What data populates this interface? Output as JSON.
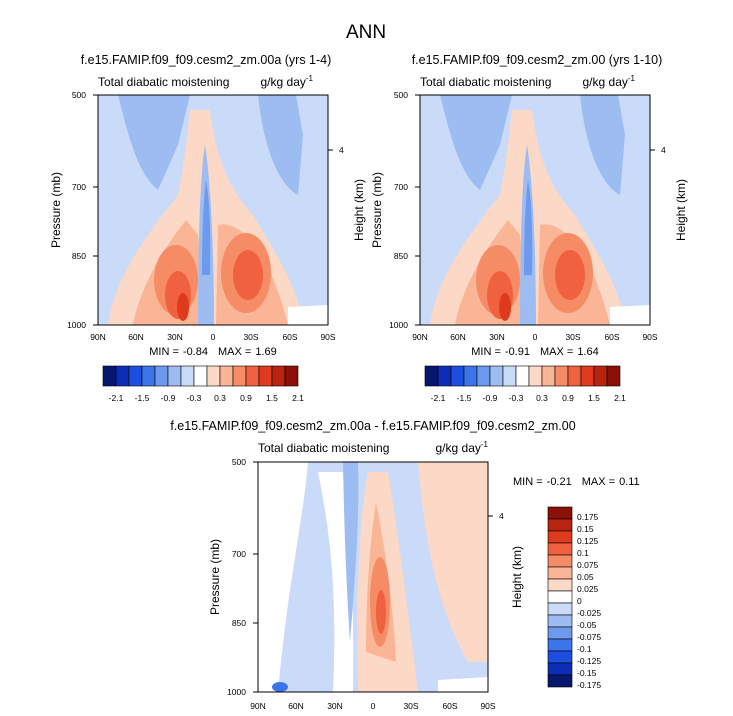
{
  "figure": {
    "title": "ANN"
  },
  "chart_data": [
    {
      "type": "heatmap",
      "title": "f.e15.FAMIP.f09_f09.cesm2_zm.00a (yrs 1-4)",
      "left_label": "Total diabatic moistening",
      "units": "g/kg day",
      "units_exp": "-1",
      "xlabel": "",
      "ylabel": "Pressure (mb)",
      "ylabel_right": "Height (km)",
      "x_ticks": [
        "90N",
        "60N",
        "30N",
        "0",
        "30S",
        "60S",
        "90S"
      ],
      "y_ticks": [
        "500",
        "700",
        "850",
        "1000"
      ],
      "y_right_ticks": [
        "4"
      ],
      "stats": {
        "min_label": "MIN =",
        "min": "-0.84",
        "max_label": "MAX =",
        "max": "1.69"
      },
      "colorbar": {
        "orientation": "horizontal",
        "labels": [
          "-2.1",
          "-1.5",
          "-0.9",
          "-0.3",
          "0.3",
          "0.9",
          "1.5",
          "2.1"
        ]
      }
    },
    {
      "type": "heatmap",
      "title": "f.e15.FAMIP.f09_f09.cesm2_zm.00 (yrs 1-10)",
      "left_label": "Total diabatic moistening",
      "units": "g/kg day",
      "units_exp": "-1",
      "xlabel": "",
      "ylabel": "Pressure (mb)",
      "ylabel_right": "Height (km)",
      "x_ticks": [
        "90N",
        "60N",
        "30N",
        "0",
        "30S",
        "60S",
        "90S"
      ],
      "y_ticks": [
        "500",
        "700",
        "850",
        "1000"
      ],
      "y_right_ticks": [
        "4"
      ],
      "stats": {
        "min_label": "MIN =",
        "min": "-0.91",
        "max_label": "MAX =",
        "max": "1.64"
      },
      "colorbar": {
        "orientation": "horizontal",
        "labels": [
          "-2.1",
          "-1.5",
          "-0.9",
          "-0.3",
          "0.3",
          "0.9",
          "1.5",
          "2.1"
        ]
      }
    },
    {
      "type": "heatmap",
      "title": "f.e15.FAMIP.f09_f09.cesm2_zm.00a - f.e15.FAMIP.f09_f09.cesm2_zm.00",
      "left_label": "Total diabatic moistening",
      "units": "g/kg day",
      "units_exp": "-1",
      "xlabel": "",
      "ylabel": "Pressure (mb)",
      "ylabel_right": "Height (km)",
      "x_ticks": [
        "90N",
        "60N",
        "30N",
        "0",
        "30S",
        "60S",
        "90S"
      ],
      "y_ticks": [
        "500",
        "700",
        "850",
        "1000"
      ],
      "y_right_ticks": [
        "4"
      ],
      "stats": {
        "min_label": "MIN =",
        "min": "-0.21",
        "max_label": "MAX =",
        "max": "0.11"
      },
      "colorbar": {
        "orientation": "vertical",
        "labels": [
          "0.175",
          "0.15",
          "0.125",
          "0.1",
          "0.075",
          "0.05",
          "0.025",
          "0",
          "-0.025",
          "-0.05",
          "-0.075",
          "-0.1",
          "-0.125",
          "-0.15",
          "-0.175"
        ]
      }
    }
  ],
  "palette": [
    "#08176b",
    "#0c2db5",
    "#1c4fe0",
    "#3c74ea",
    "#6e9aee",
    "#9dbdf2",
    "#c9dbf8",
    "#ffffff",
    "#fcd8c6",
    "#f9b596",
    "#f58c66",
    "#f0623f",
    "#e03a1e",
    "#b92410",
    "#8b1007"
  ]
}
